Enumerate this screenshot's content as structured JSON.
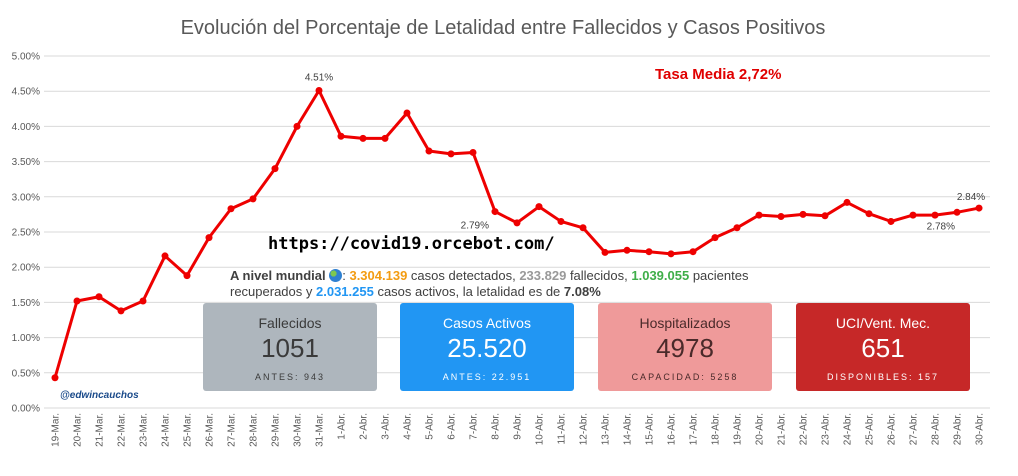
{
  "chart_data": {
    "type": "line",
    "title": "Evolución del Porcentaje de Letalidad entre Fallecidos y Casos Positivos",
    "xlabel": "",
    "ylabel": "",
    "ylim": [
      0,
      5
    ],
    "yticks": [
      "0.00%",
      "0.50%",
      "1.00%",
      "1.50%",
      "2.00%",
      "2.50%",
      "3.00%",
      "3.50%",
      "4.00%",
      "4.50%",
      "5.00%"
    ],
    "grid": true,
    "categories": [
      "19-Mar.",
      "20-Mar.",
      "21-Mar.",
      "22-Mar.",
      "23-Mar.",
      "24-Mar.",
      "25-Mar.",
      "26-Mar.",
      "27-Mar.",
      "28-Mar.",
      "29-Mar.",
      "30-Mar.",
      "31-Mar.",
      "1-Abr.",
      "2-Abr.",
      "3-Abr.",
      "4-Abr.",
      "5-Abr.",
      "6-Abr.",
      "7-Abr.",
      "8-Abr.",
      "9-Abr.",
      "10-Abr.",
      "11-Abr.",
      "12-Abr.",
      "13-Abr.",
      "14-Abr.",
      "15-Abr.",
      "16-Abr.",
      "17-Abr.",
      "18-Abr.",
      "19-Abr.",
      "20-Abr.",
      "21-Abr.",
      "22-Abr.",
      "23-Abr.",
      "24-Abr.",
      "25-Abr.",
      "26-Abr.",
      "27-Abr.",
      "28-Abr.",
      "29-Abr.",
      "30-Abr."
    ],
    "series": [
      {
        "name": "Letalidad",
        "color": "#ee0000",
        "values": [
          0.43,
          1.52,
          1.58,
          1.38,
          1.52,
          2.16,
          1.88,
          2.42,
          2.83,
          2.97,
          3.4,
          4.0,
          4.51,
          3.86,
          3.83,
          3.83,
          4.19,
          3.65,
          3.61,
          3.63,
          2.79,
          2.63,
          2.86,
          2.65,
          2.56,
          2.21,
          2.24,
          2.22,
          2.19,
          2.22,
          2.42,
          2.56,
          2.74,
          2.72,
          2.75,
          2.73,
          2.92,
          2.76,
          2.65,
          2.74,
          2.74,
          2.78,
          2.84
        ]
      }
    ],
    "data_labels": [
      {
        "index": 12,
        "text": "4.51%"
      },
      {
        "index": 20,
        "text": "2.79%"
      },
      {
        "index": 41,
        "text": "2.78%"
      },
      {
        "index": 42,
        "text": "2.84%"
      }
    ]
  },
  "annotations": {
    "tasa_media": "Tasa Media 2,72%",
    "url": "https://covid19.orcebot.com/",
    "handle": "@edwincauchos"
  },
  "mundial": {
    "prefix": "A nivel mundial",
    "colon": ":",
    "detected": "3.304.139",
    "t_detected": " casos detectados, ",
    "deaths": "233.829",
    "t_deaths": " fallecidos, ",
    "recovered": "1.039.055",
    "t_recovered": " pacientes recuperados y ",
    "active": "2.031.255",
    "t_active": " casos activos, la letalidad es de ",
    "lethality": "7.08%"
  },
  "cards": [
    {
      "title": "Fallecidos",
      "value": "1051",
      "sub": "ANTES: 943",
      "bg": "#aeb6bd",
      "fg": "#3a3a3a"
    },
    {
      "title": "Casos Activos",
      "value": "25.520",
      "sub": "ANTES: 22.951",
      "bg": "#2196f3",
      "fg": "#ffffff"
    },
    {
      "title": "Hospitalizados",
      "value": "4978",
      "sub": "CAPACIDAD: 5258",
      "bg": "#ef9a9a",
      "fg": "#4a2a2a"
    },
    {
      "title": "UCI/Vent. Mec.",
      "value": "651",
      "sub": "DISPONIBLES: 157",
      "bg": "#c62828",
      "fg": "#ffffff"
    }
  ]
}
